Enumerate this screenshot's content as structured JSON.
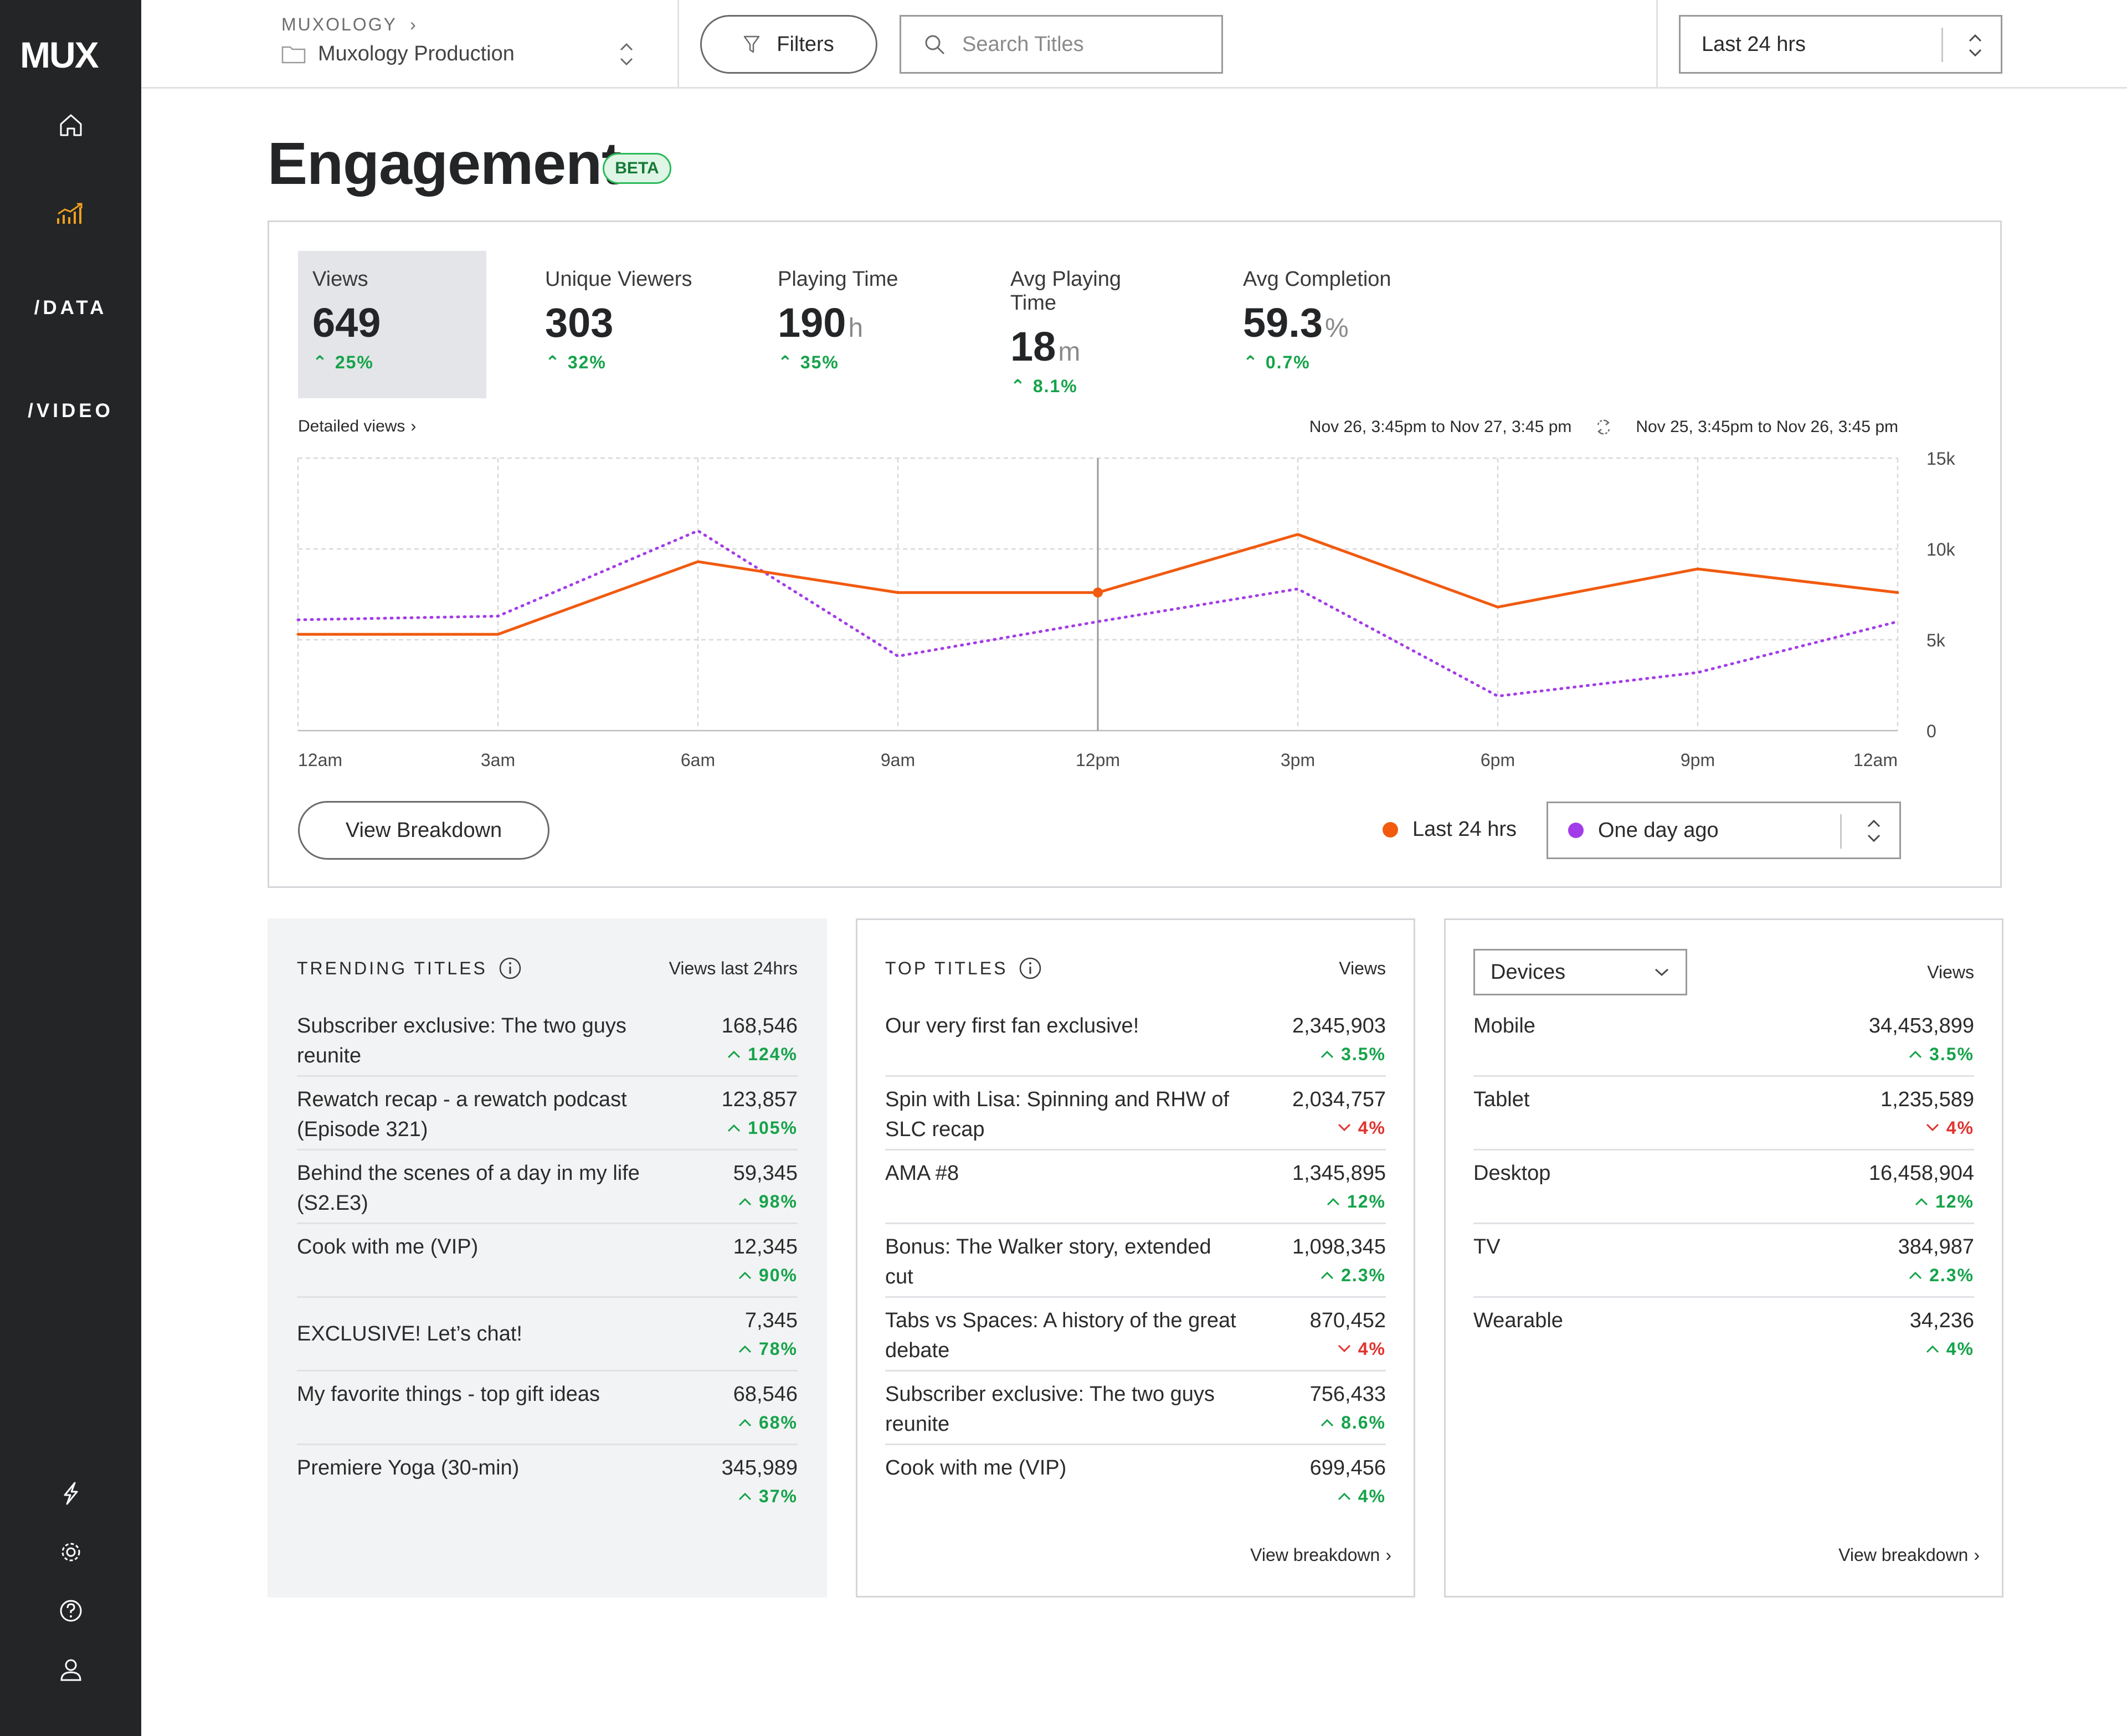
{
  "app": {
    "logo": "MUX",
    "nav": {
      "data_label": "/DATA",
      "video_label": "/VIDEO"
    }
  },
  "header": {
    "org": "MUXOLOGY",
    "environment": "Muxology Production",
    "filters_label": "Filters",
    "search_placeholder": "Search Titles",
    "time_range": "Last 24 hrs"
  },
  "page": {
    "title": "Engagement",
    "badge": "BETA"
  },
  "metrics": [
    {
      "label": "Views",
      "value": "649",
      "unit": "",
      "delta": "25%"
    },
    {
      "label": "Unique Viewers",
      "value": "303",
      "unit": "",
      "delta": "32%"
    },
    {
      "label": "Playing Time",
      "value": "190",
      "unit": "h",
      "delta": "35%"
    },
    {
      "label": "Avg Playing Time",
      "value": "18",
      "unit": "m",
      "delta": "8.1%"
    },
    {
      "label": "Avg Completion",
      "value": "59.3",
      "unit": "%",
      "delta": "0.7%"
    }
  ],
  "chart_header": {
    "detailed_link": "Detailed views",
    "current_range": "Nov 26, 3:45pm to Nov 27, 3:45 pm",
    "compare_range": "Nov 25, 3:45pm to Nov 26, 3:45 pm"
  },
  "chart_data": {
    "type": "line",
    "title": "Views",
    "categories": [
      "12am",
      "3am",
      "6am",
      "9am",
      "12pm",
      "3pm",
      "6pm",
      "9pm",
      "12am"
    ],
    "y_ticks": [
      "0",
      "5k",
      "10k",
      "15k"
    ],
    "ylim": [
      0,
      15000
    ],
    "series": [
      {
        "name": "Last 24 hrs",
        "color": "#f15a0f",
        "style": "solid",
        "values": [
          5300,
          5300,
          9300,
          7600,
          7600,
          10800,
          6800,
          8900,
          7600
        ]
      },
      {
        "name": "One day ago",
        "color": "#a23ce8",
        "style": "dotted",
        "values": [
          6100,
          6300,
          11000,
          4100,
          6000,
          7800,
          1900,
          3200,
          6000
        ]
      }
    ],
    "highlight_index": 4,
    "grid": true,
    "legend": "bottom-right"
  },
  "chart_footer": {
    "view_breakdown": "View Breakdown",
    "legend_current": "Last 24 hrs",
    "compare_select": "One day ago"
  },
  "trending": {
    "title": "TRENDING TITLES",
    "col": "Views last 24hrs",
    "rows": [
      {
        "name": "Subscriber exclusive: The two guys reunite",
        "views": "168,546",
        "pct": "124%",
        "dir": "up"
      },
      {
        "name": "Rewatch recap - a rewatch podcast (Episode 321)",
        "views": "123,857",
        "pct": "105%",
        "dir": "up"
      },
      {
        "name": "Behind the scenes of a day in my life (S2.E3)",
        "views": "59,345",
        "pct": "98%",
        "dir": "up"
      },
      {
        "name": "Cook with me (VIP)",
        "views": "12,345",
        "pct": "90%",
        "dir": "up"
      },
      {
        "name": "EXCLUSIVE! Let’s chat!",
        "views": "7,345",
        "pct": "78%",
        "dir": "up"
      },
      {
        "name": "My favorite things - top gift ideas",
        "views": "68,546",
        "pct": "68%",
        "dir": "up"
      },
      {
        "name": "Premiere Yoga (30-min)",
        "views": "345,989",
        "pct": "37%",
        "dir": "up"
      }
    ]
  },
  "top_titles": {
    "title": "TOP TITLES",
    "col": "Views",
    "footer": "View breakdown",
    "rows": [
      {
        "name": "Our very first fan exclusive!",
        "views": "2,345,903",
        "pct": "3.5%",
        "dir": "up"
      },
      {
        "name": "Spin with Lisa: Spinning and RHW of SLC recap",
        "views": "2,034,757",
        "pct": "4%",
        "dir": "down"
      },
      {
        "name": "AMA #8",
        "views": "1,345,895",
        "pct": "12%",
        "dir": "up"
      },
      {
        "name": "Bonus: The Walker story, extended cut",
        "views": "1,098,345",
        "pct": "2.3%",
        "dir": "up"
      },
      {
        "name": "Tabs vs Spaces: A history of the great debate",
        "views": "870,452",
        "pct": "4%",
        "dir": "down"
      },
      {
        "name": "Subscriber exclusive: The two guys reunite",
        "views": "756,433",
        "pct": "8.6%",
        "dir": "up"
      },
      {
        "name": "Cook with me (VIP)",
        "views": "699,456",
        "pct": "4%",
        "dir": "up"
      }
    ]
  },
  "devices": {
    "select": "Devices",
    "col": "Views",
    "footer": "View breakdown",
    "rows": [
      {
        "name": "Mobile",
        "views": "34,453,899",
        "pct": "3.5%",
        "dir": "up"
      },
      {
        "name": "Tablet",
        "views": "1,235,589",
        "pct": "4%",
        "dir": "down"
      },
      {
        "name": "Desktop",
        "views": "16,458,904",
        "pct": "12%",
        "dir": "up"
      },
      {
        "name": "TV",
        "views": "384,987",
        "pct": "2.3%",
        "dir": "up"
      },
      {
        "name": "Wearable",
        "views": "34,236",
        "pct": "4%",
        "dir": "up"
      }
    ]
  },
  "colors": {
    "accent": "#f15a0f",
    "compare": "#a23ce8",
    "up": "#16a34a",
    "down": "#e0342f",
    "sidebar": "#232527",
    "active_nav": "#f0a020"
  }
}
